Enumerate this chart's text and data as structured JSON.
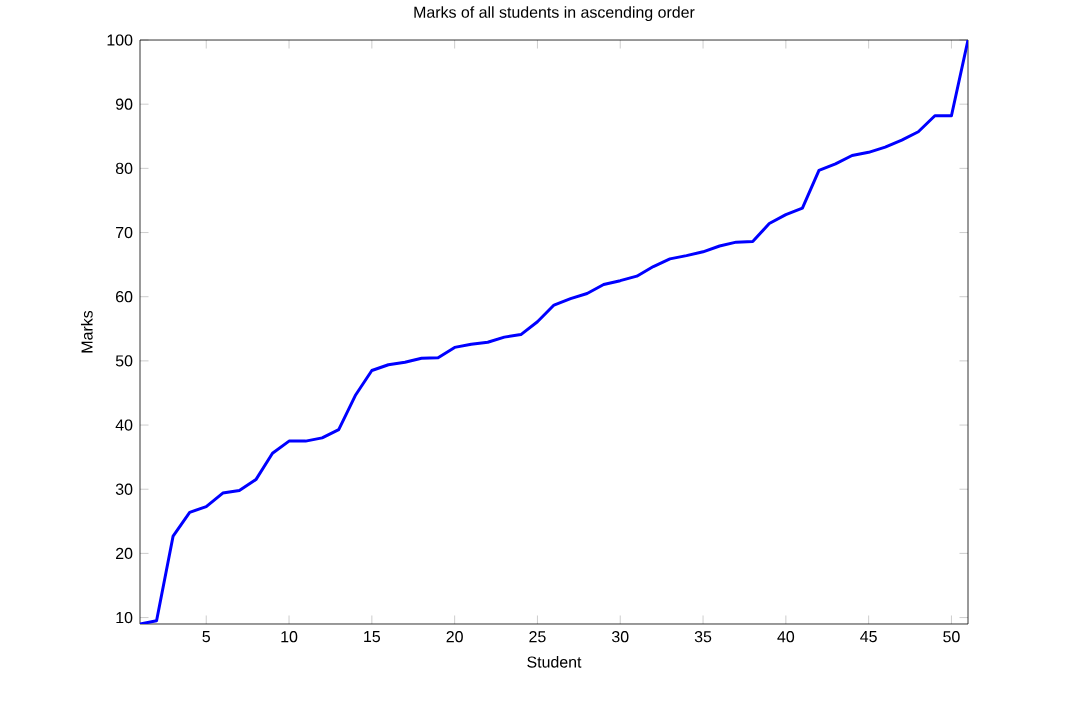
{
  "chart_data": {
    "type": "line",
    "title": "Marks of all students in ascending order",
    "xlabel": "Student",
    "ylabel": "Marks",
    "x": [
      1,
      2,
      3,
      4,
      5,
      6,
      7,
      8,
      9,
      10,
      11,
      12,
      13,
      14,
      15,
      16,
      17,
      18,
      19,
      20,
      21,
      22,
      23,
      24,
      25,
      26,
      27,
      28,
      29,
      30,
      31,
      32,
      33,
      34,
      35,
      36,
      37,
      38,
      39,
      40,
      41,
      42,
      43,
      44,
      45,
      46,
      47,
      48,
      49,
      50,
      51
    ],
    "series": [
      {
        "color": "#0000ff",
        "values": [
          9,
          9.5,
          22.7,
          26.4,
          27.3,
          29.4,
          29.8,
          31.5,
          35.6,
          37.5,
          37.5,
          38,
          39.3,
          44.6,
          48.5,
          49.4,
          49.8,
          50.4,
          50.5,
          52.1,
          52.6,
          52.9,
          53.7,
          54.1,
          56.1,
          58.7,
          59.7,
          60.5,
          61.9,
          62.5,
          63.2,
          64.7,
          65.9,
          66.4,
          67,
          67.9,
          68.5,
          68.6,
          71.4,
          72.8,
          73.8,
          79.7,
          80.7,
          82,
          82.5,
          83.3,
          84.4,
          85.7,
          88.2,
          88.2,
          100
        ]
      }
    ],
    "xlim": [
      1,
      51
    ],
    "ylim": [
      9,
      100
    ],
    "xticks": [
      5,
      10,
      15,
      20,
      25,
      30,
      35,
      40,
      45,
      50
    ],
    "yticks": [
      10,
      20,
      30,
      40,
      50,
      60,
      70,
      80,
      90,
      100
    ],
    "grid": false,
    "legend": false,
    "marker": "none",
    "line_style": "solid"
  }
}
